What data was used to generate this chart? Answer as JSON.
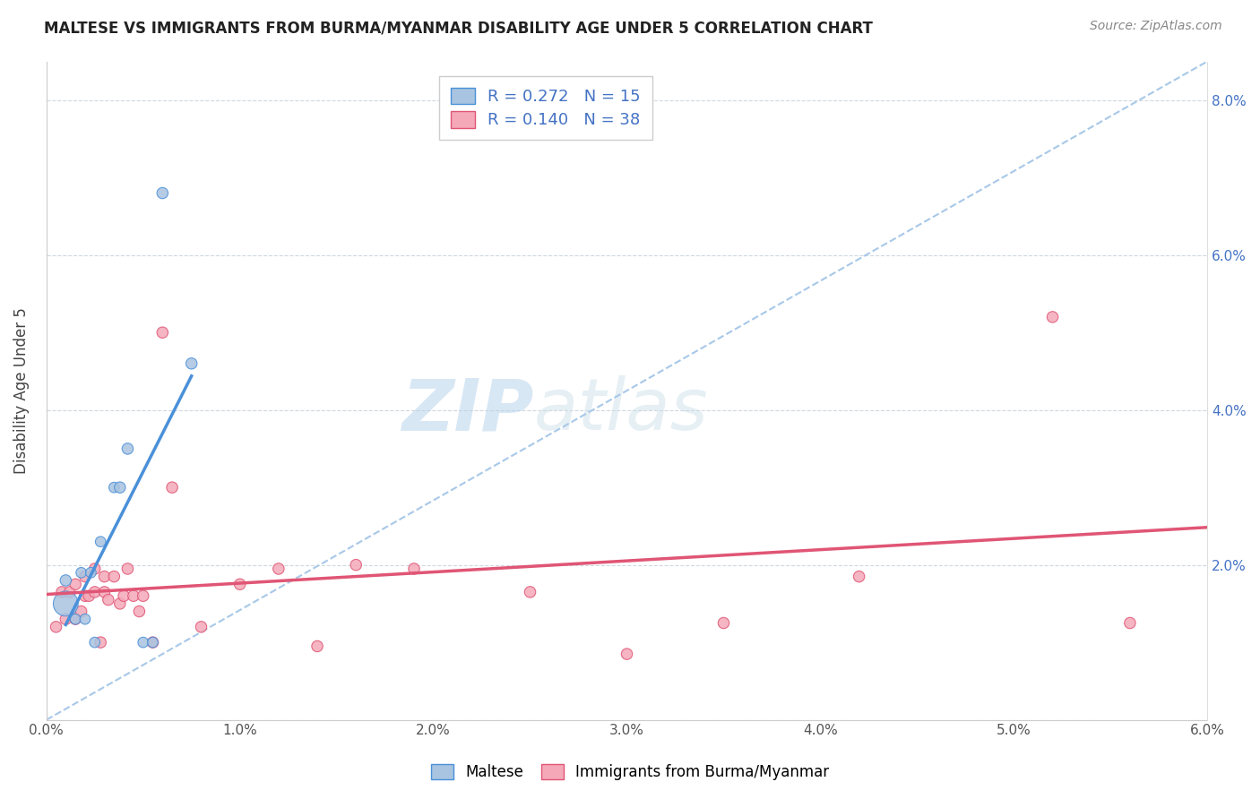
{
  "title": "MALTESE VS IMMIGRANTS FROM BURMA/MYANMAR DISABILITY AGE UNDER 5 CORRELATION CHART",
  "source": "Source: ZipAtlas.com",
  "ylabel": "Disability Age Under 5",
  "xlabel": "",
  "xlim": [
    0.0,
    0.06
  ],
  "ylim": [
    0.0,
    0.085
  ],
  "xticks": [
    0.0,
    0.01,
    0.02,
    0.03,
    0.04,
    0.05,
    0.06
  ],
  "yticks": [
    0.0,
    0.02,
    0.04,
    0.06,
    0.08
  ],
  "xtick_labels": [
    "0.0%",
    "1.0%",
    "2.0%",
    "3.0%",
    "4.0%",
    "5.0%",
    "6.0%"
  ],
  "ytick_labels_left": [
    "",
    "",
    "",
    "",
    ""
  ],
  "ytick_labels_right": [
    "",
    "2.0%",
    "4.0%",
    "6.0%",
    "8.0%"
  ],
  "maltese_color": "#a8c4e0",
  "burma_color": "#f4a8b8",
  "maltese_line_color": "#4a90d9",
  "burma_line_color": "#e05575",
  "dashed_line_color": "#a8c8e8",
  "watermark_zip": "ZIP",
  "watermark_atlas": "atlas",
  "maltese_x": [
    0.001,
    0.001,
    0.0015,
    0.0018,
    0.002,
    0.0023,
    0.0025,
    0.0028,
    0.0035,
    0.0038,
    0.0042,
    0.005,
    0.0055,
    0.006,
    0.0075
  ],
  "maltese_y": [
    0.015,
    0.018,
    0.013,
    0.019,
    0.013,
    0.019,
    0.01,
    0.023,
    0.03,
    0.03,
    0.035,
    0.01,
    0.01,
    0.068,
    0.046
  ],
  "maltese_size": [
    400,
    80,
    70,
    70,
    70,
    70,
    70,
    70,
    70,
    80,
    80,
    70,
    70,
    80,
    80
  ],
  "burma_x": [
    0.0005,
    0.0008,
    0.001,
    0.0012,
    0.0015,
    0.0015,
    0.0018,
    0.002,
    0.002,
    0.0022,
    0.0025,
    0.0025,
    0.0028,
    0.003,
    0.003,
    0.0032,
    0.0035,
    0.0038,
    0.004,
    0.0042,
    0.0045,
    0.0048,
    0.005,
    0.0055,
    0.006,
    0.0065,
    0.008,
    0.01,
    0.012,
    0.014,
    0.016,
    0.019,
    0.025,
    0.03,
    0.035,
    0.042,
    0.052,
    0.056
  ],
  "burma_y": [
    0.012,
    0.0165,
    0.013,
    0.0165,
    0.013,
    0.0175,
    0.014,
    0.016,
    0.0185,
    0.016,
    0.0165,
    0.0195,
    0.01,
    0.0165,
    0.0185,
    0.0155,
    0.0185,
    0.015,
    0.016,
    0.0195,
    0.016,
    0.014,
    0.016,
    0.01,
    0.05,
    0.03,
    0.012,
    0.0175,
    0.0195,
    0.0095,
    0.02,
    0.0195,
    0.0165,
    0.0085,
    0.0125,
    0.0185,
    0.052,
    0.0125
  ],
  "burma_size": [
    80,
    80,
    80,
    80,
    80,
    80,
    80,
    80,
    80,
    80,
    80,
    80,
    80,
    80,
    80,
    80,
    80,
    80,
    80,
    80,
    80,
    80,
    80,
    80,
    80,
    80,
    80,
    80,
    80,
    80,
    80,
    80,
    80,
    80,
    80,
    80,
    80,
    80
  ]
}
